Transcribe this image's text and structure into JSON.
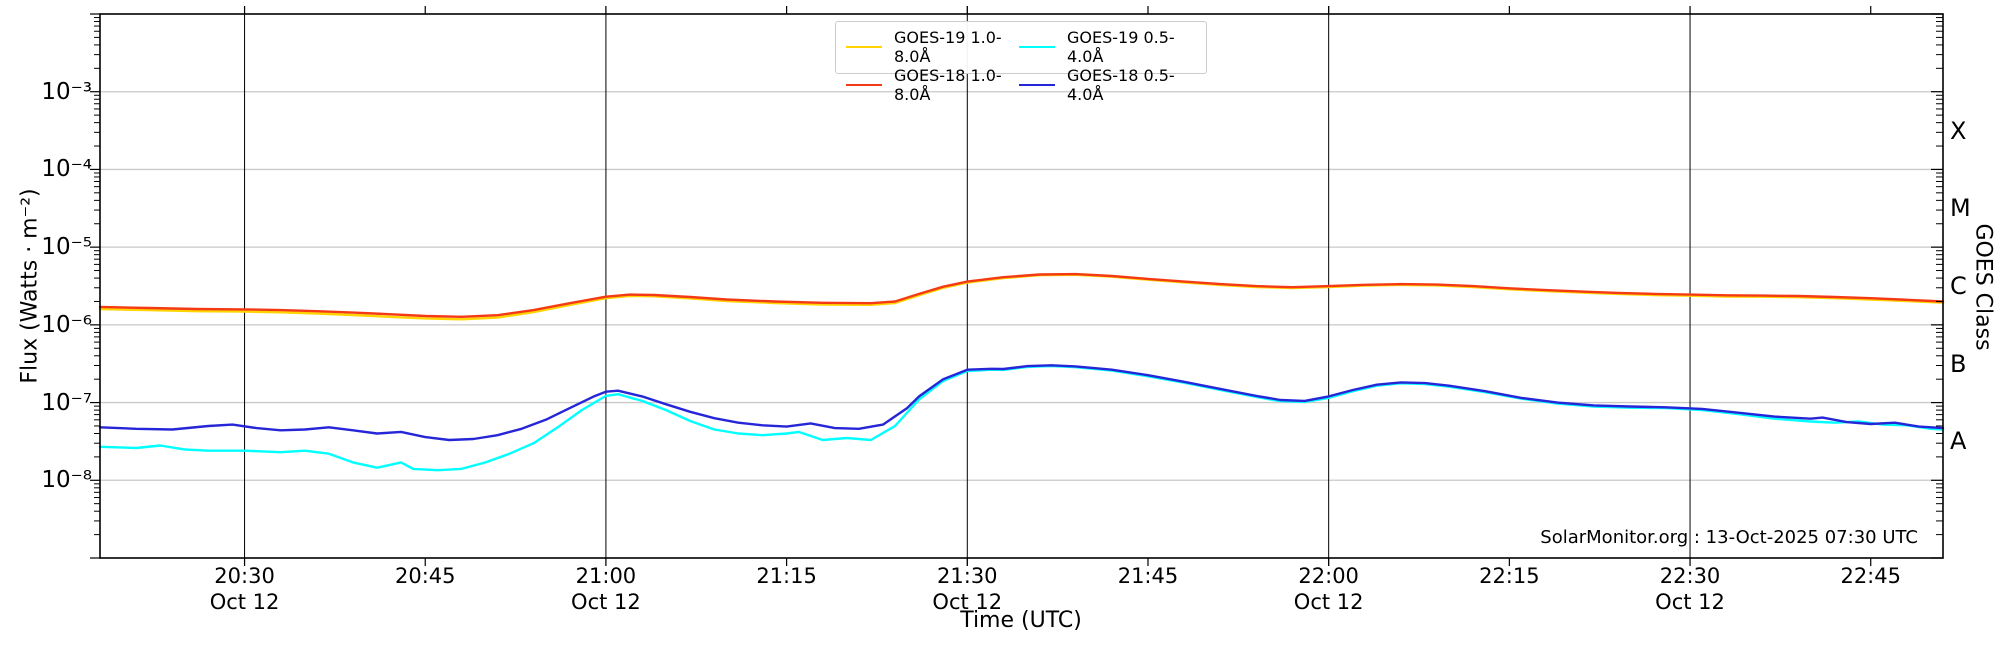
{
  "page": {
    "credit": "SolarMonitor.org : 13-Oct-2025 07:30 UTC"
  },
  "chart_data": {
    "type": "line",
    "title": "",
    "xlabel": "Time (UTC)",
    "ylabel": "Flux (Watts · m⁻²)",
    "ylabel_right": "GOES Class",
    "yscale": "log",
    "ylim": [
      1e-09,
      0.01
    ],
    "xlim": [
      "20:18",
      "22:51"
    ],
    "grid": {
      "horizontal_decades": [
        -3,
        -4,
        -5,
        -6,
        -7,
        -8
      ],
      "vertical_lines": [
        "20:30",
        "21:00",
        "21:30",
        "22:00",
        "22:30"
      ],
      "grid_color": "#c9c9c9",
      "vline_color": "#000000"
    },
    "x_ticks": [
      {
        "label": "20:30",
        "date": "Oct 12",
        "vline": true
      },
      {
        "label": "20:45",
        "date": "",
        "vline": false
      },
      {
        "label": "21:00",
        "date": "Oct 12",
        "vline": true
      },
      {
        "label": "21:15",
        "date": "",
        "vline": false
      },
      {
        "label": "21:30",
        "date": "Oct 12",
        "vline": true
      },
      {
        "label": "21:45",
        "date": "",
        "vline": false
      },
      {
        "label": "22:00",
        "date": "Oct 12",
        "vline": true
      },
      {
        "label": "22:15",
        "date": "",
        "vline": false
      },
      {
        "label": "22:30",
        "date": "Oct 12",
        "vline": true
      },
      {
        "label": "22:45",
        "date": "",
        "vline": false
      }
    ],
    "y_ticks": [
      {
        "label": "10⁻³",
        "exp": -3
      },
      {
        "label": "10⁻⁴",
        "exp": -4
      },
      {
        "label": "10⁻⁵",
        "exp": -5
      },
      {
        "label": "10⁻⁶",
        "exp": -6
      },
      {
        "label": "10⁻⁷",
        "exp": -7
      },
      {
        "label": "10⁻⁸",
        "exp": -8
      }
    ],
    "goes_classes": [
      {
        "label": "X",
        "exp_mid": -3.5
      },
      {
        "label": "M",
        "exp_mid": -4.5
      },
      {
        "label": "C",
        "exp_mid": -5.5
      },
      {
        "label": "B",
        "exp_mid": -6.5
      },
      {
        "label": "A",
        "exp_mid": -7.5
      }
    ],
    "legend_position": "top-center",
    "series": [
      {
        "name": "GOES-19 1.0-8.0Å",
        "color": "#ffd400",
        "points": [
          [
            "20:18",
            1.6e-06
          ],
          [
            "20:22",
            1.55e-06
          ],
          [
            "20:26",
            1.5e-06
          ],
          [
            "20:30",
            1.48e-06
          ],
          [
            "20:33",
            1.45e-06
          ],
          [
            "20:36",
            1.4e-06
          ],
          [
            "20:39",
            1.34e-06
          ],
          [
            "20:42",
            1.27e-06
          ],
          [
            "20:45",
            1.21e-06
          ],
          [
            "20:48",
            1.18e-06
          ],
          [
            "20:51",
            1.24e-06
          ],
          [
            "20:54",
            1.46e-06
          ],
          [
            "20:57",
            1.8e-06
          ],
          [
            "21:00",
            2.2e-06
          ],
          [
            "21:02",
            2.36e-06
          ],
          [
            "21:04",
            2.33e-06
          ],
          [
            "21:07",
            2.19e-06
          ],
          [
            "21:10",
            2.03e-06
          ],
          [
            "21:14",
            1.91e-06
          ],
          [
            "21:18",
            1.83e-06
          ],
          [
            "21:22",
            1.81e-06
          ],
          [
            "21:24",
            1.91e-06
          ],
          [
            "21:26",
            2.41e-06
          ],
          [
            "21:28",
            3e-06
          ],
          [
            "21:30",
            3.5e-06
          ],
          [
            "21:33",
            4e-06
          ],
          [
            "21:36",
            4.36e-06
          ],
          [
            "21:39",
            4.41e-06
          ],
          [
            "21:42",
            4.16e-06
          ],
          [
            "21:45",
            3.81e-06
          ],
          [
            "21:48",
            3.52e-06
          ],
          [
            "21:51",
            3.27e-06
          ],
          [
            "21:54",
            3.07e-06
          ],
          [
            "21:57",
            2.97e-06
          ],
          [
            "22:00",
            3.07e-06
          ],
          [
            "22:03",
            3.2e-06
          ],
          [
            "22:06",
            3.27e-06
          ],
          [
            "22:09",
            3.22e-06
          ],
          [
            "22:12",
            3.07e-06
          ],
          [
            "22:15",
            2.87e-06
          ],
          [
            "22:18",
            2.72e-06
          ],
          [
            "22:21",
            2.6e-06
          ],
          [
            "22:24",
            2.5e-06
          ],
          [
            "22:27",
            2.42e-06
          ],
          [
            "22:30",
            2.37e-06
          ],
          [
            "22:33",
            2.32e-06
          ],
          [
            "22:36",
            2.3e-06
          ],
          [
            "22:39",
            2.27e-06
          ],
          [
            "22:42",
            2.2e-06
          ],
          [
            "22:45",
            2.12e-06
          ],
          [
            "22:48",
            2.02e-06
          ],
          [
            "22:51",
            1.93e-06
          ]
        ]
      },
      {
        "name": "GOES-18 1.0-8.0Å",
        "color": "#f43a14",
        "points": [
          [
            "20:18",
            1.7e-06
          ],
          [
            "20:22",
            1.65e-06
          ],
          [
            "20:26",
            1.6e-06
          ],
          [
            "20:30",
            1.58e-06
          ],
          [
            "20:33",
            1.55e-06
          ],
          [
            "20:36",
            1.5e-06
          ],
          [
            "20:39",
            1.44e-06
          ],
          [
            "20:42",
            1.37e-06
          ],
          [
            "20:45",
            1.3e-06
          ],
          [
            "20:48",
            1.27e-06
          ],
          [
            "20:51",
            1.33e-06
          ],
          [
            "20:54",
            1.55e-06
          ],
          [
            "20:57",
            1.9e-06
          ],
          [
            "21:00",
            2.3e-06
          ],
          [
            "21:02",
            2.45e-06
          ],
          [
            "21:04",
            2.42e-06
          ],
          [
            "21:07",
            2.28e-06
          ],
          [
            "21:10",
            2.12e-06
          ],
          [
            "21:14",
            2e-06
          ],
          [
            "21:18",
            1.92e-06
          ],
          [
            "21:22",
            1.9e-06
          ],
          [
            "21:24",
            2e-06
          ],
          [
            "21:26",
            2.5e-06
          ],
          [
            "21:28",
            3.1e-06
          ],
          [
            "21:30",
            3.6e-06
          ],
          [
            "21:33",
            4.1e-06
          ],
          [
            "21:36",
            4.45e-06
          ],
          [
            "21:39",
            4.5e-06
          ],
          [
            "21:42",
            4.25e-06
          ],
          [
            "21:45",
            3.9e-06
          ],
          [
            "21:48",
            3.6e-06
          ],
          [
            "21:51",
            3.35e-06
          ],
          [
            "21:54",
            3.15e-06
          ],
          [
            "21:57",
            3.05e-06
          ],
          [
            "22:00",
            3.15e-06
          ],
          [
            "22:03",
            3.28e-06
          ],
          [
            "22:06",
            3.35e-06
          ],
          [
            "22:09",
            3.3e-06
          ],
          [
            "22:12",
            3.15e-06
          ],
          [
            "22:15",
            2.95e-06
          ],
          [
            "22:18",
            2.8e-06
          ],
          [
            "22:21",
            2.68e-06
          ],
          [
            "22:24",
            2.58e-06
          ],
          [
            "22:27",
            2.5e-06
          ],
          [
            "22:30",
            2.45e-06
          ],
          [
            "22:33",
            2.4e-06
          ],
          [
            "22:36",
            2.38e-06
          ],
          [
            "22:39",
            2.35e-06
          ],
          [
            "22:42",
            2.28e-06
          ],
          [
            "22:45",
            2.2e-06
          ],
          [
            "22:48",
            2.1e-06
          ],
          [
            "22:51",
            2e-06
          ]
        ]
      },
      {
        "name": "GOES-19 0.5-4.0Å",
        "color": "#00ffff",
        "points": [
          [
            "20:18",
            2.7e-08
          ],
          [
            "20:21",
            2.6e-08
          ],
          [
            "20:23",
            2.8e-08
          ],
          [
            "20:25",
            2.5e-08
          ],
          [
            "20:27",
            2.4e-08
          ],
          [
            "20:30",
            2.4e-08
          ],
          [
            "20:33",
            2.3e-08
          ],
          [
            "20:35",
            2.4e-08
          ],
          [
            "20:37",
            2.2e-08
          ],
          [
            "20:39",
            1.7e-08
          ],
          [
            "20:41",
            1.45e-08
          ],
          [
            "20:43",
            1.7e-08
          ],
          [
            "20:44",
            1.4e-08
          ],
          [
            "20:46",
            1.35e-08
          ],
          [
            "20:48",
            1.4e-08
          ],
          [
            "20:50",
            1.7e-08
          ],
          [
            "20:52",
            2.2e-08
          ],
          [
            "20:54",
            3e-08
          ],
          [
            "20:56",
            4.8e-08
          ],
          [
            "20:58",
            8e-08
          ],
          [
            "21:00",
            1.22e-07
          ],
          [
            "21:01",
            1.28e-07
          ],
          [
            "21:03",
            1.05e-07
          ],
          [
            "21:05",
            8e-08
          ],
          [
            "21:07",
            5.8e-08
          ],
          [
            "21:09",
            4.5e-08
          ],
          [
            "21:11",
            4e-08
          ],
          [
            "21:13",
            3.8e-08
          ],
          [
            "21:15",
            4e-08
          ],
          [
            "21:16",
            4.2e-08
          ],
          [
            "21:18",
            3.3e-08
          ],
          [
            "21:20",
            3.5e-08
          ],
          [
            "21:22",
            3.3e-08
          ],
          [
            "21:24",
            5e-08
          ],
          [
            "21:26",
            1.1e-07
          ],
          [
            "21:28",
            1.9e-07
          ],
          [
            "21:30",
            2.55e-07
          ],
          [
            "21:32",
            2.65e-07
          ],
          [
            "21:33",
            2.63e-07
          ],
          [
            "21:35",
            2.88e-07
          ],
          [
            "21:37",
            2.95e-07
          ],
          [
            "21:39",
            2.85e-07
          ],
          [
            "21:42",
            2.58e-07
          ],
          [
            "21:45",
            2.18e-07
          ],
          [
            "21:48",
            1.8e-07
          ],
          [
            "21:51",
            1.45e-07
          ],
          [
            "21:54",
            1.18e-07
          ],
          [
            "21:56",
            1.04e-07
          ],
          [
            "21:58",
            1.02e-07
          ],
          [
            "22:00",
            1.15e-07
          ],
          [
            "22:02",
            1.4e-07
          ],
          [
            "22:04",
            1.65e-07
          ],
          [
            "22:06",
            1.77e-07
          ],
          [
            "22:08",
            1.73e-07
          ],
          [
            "22:10",
            1.6e-07
          ],
          [
            "22:13",
            1.36e-07
          ],
          [
            "22:16",
            1.12e-07
          ],
          [
            "22:19",
            9.7e-08
          ],
          [
            "22:22",
            8.9e-08
          ],
          [
            "22:25",
            8.6e-08
          ],
          [
            "22:28",
            8.5e-08
          ],
          [
            "22:31",
            8e-08
          ],
          [
            "22:34",
            7.1e-08
          ],
          [
            "22:37",
            6.2e-08
          ],
          [
            "22:40",
            5.7e-08
          ],
          [
            "22:42",
            5.5e-08
          ],
          [
            "22:44",
            5.7e-08
          ],
          [
            "22:46",
            5.2e-08
          ],
          [
            "22:48",
            5.1e-08
          ],
          [
            "22:50",
            4.6e-08
          ],
          [
            "22:51",
            4.5e-08
          ]
        ]
      },
      {
        "name": "GOES-18 0.5-4.0Å",
        "color": "#2626d8",
        "points": [
          [
            "20:18",
            4.8e-08
          ],
          [
            "20:21",
            4.6e-08
          ],
          [
            "20:24",
            4.5e-08
          ],
          [
            "20:27",
            5e-08
          ],
          [
            "20:29",
            5.2e-08
          ],
          [
            "20:31",
            4.7e-08
          ],
          [
            "20:33",
            4.4e-08
          ],
          [
            "20:35",
            4.5e-08
          ],
          [
            "20:37",
            4.8e-08
          ],
          [
            "20:39",
            4.4e-08
          ],
          [
            "20:41",
            4e-08
          ],
          [
            "20:43",
            4.2e-08
          ],
          [
            "20:45",
            3.6e-08
          ],
          [
            "20:47",
            3.3e-08
          ],
          [
            "20:49",
            3.4e-08
          ],
          [
            "20:51",
            3.8e-08
          ],
          [
            "20:53",
            4.6e-08
          ],
          [
            "20:55",
            6e-08
          ],
          [
            "20:57",
            8.5e-08
          ],
          [
            "20:59",
            1.2e-07
          ],
          [
            "21:00",
            1.38e-07
          ],
          [
            "21:01",
            1.42e-07
          ],
          [
            "21:03",
            1.2e-07
          ],
          [
            "21:05",
            9.5e-08
          ],
          [
            "21:07",
            7.6e-08
          ],
          [
            "21:09",
            6.3e-08
          ],
          [
            "21:11",
            5.5e-08
          ],
          [
            "21:13",
            5.1e-08
          ],
          [
            "21:15",
            4.9e-08
          ],
          [
            "21:17",
            5.4e-08
          ],
          [
            "21:19",
            4.7e-08
          ],
          [
            "21:21",
            4.6e-08
          ],
          [
            "21:23",
            5.2e-08
          ],
          [
            "21:25",
            8.5e-08
          ],
          [
            "21:26",
            1.2e-07
          ],
          [
            "21:28",
            2e-07
          ],
          [
            "21:30",
            2.65e-07
          ],
          [
            "21:32",
            2.72e-07
          ],
          [
            "21:33",
            2.7e-07
          ],
          [
            "21:35",
            2.95e-07
          ],
          [
            "21:37",
            3.02e-07
          ],
          [
            "21:39",
            2.92e-07
          ],
          [
            "21:42",
            2.65e-07
          ],
          [
            "21:45",
            2.25e-07
          ],
          [
            "21:48",
            1.85e-07
          ],
          [
            "21:51",
            1.5e-07
          ],
          [
            "21:54",
            1.22e-07
          ],
          [
            "21:56",
            1.08e-07
          ],
          [
            "21:58",
            1.05e-07
          ],
          [
            "22:00",
            1.2e-07
          ],
          [
            "22:02",
            1.45e-07
          ],
          [
            "22:04",
            1.7e-07
          ],
          [
            "22:06",
            1.82e-07
          ],
          [
            "22:08",
            1.78e-07
          ],
          [
            "22:10",
            1.65e-07
          ],
          [
            "22:13",
            1.4e-07
          ],
          [
            "22:16",
            1.15e-07
          ],
          [
            "22:19",
            1e-07
          ],
          [
            "22:22",
            9.2e-08
          ],
          [
            "22:25",
            8.9e-08
          ],
          [
            "22:28",
            8.7e-08
          ],
          [
            "22:31",
            8.3e-08
          ],
          [
            "22:34",
            7.4e-08
          ],
          [
            "22:37",
            6.6e-08
          ],
          [
            "22:40",
            6.2e-08
          ],
          [
            "22:41",
            6.4e-08
          ],
          [
            "22:43",
            5.6e-08
          ],
          [
            "22:45",
            5.3e-08
          ],
          [
            "22:47",
            5.5e-08
          ],
          [
            "22:49",
            4.9e-08
          ],
          [
            "22:51",
            4.7e-08
          ]
        ]
      }
    ]
  }
}
